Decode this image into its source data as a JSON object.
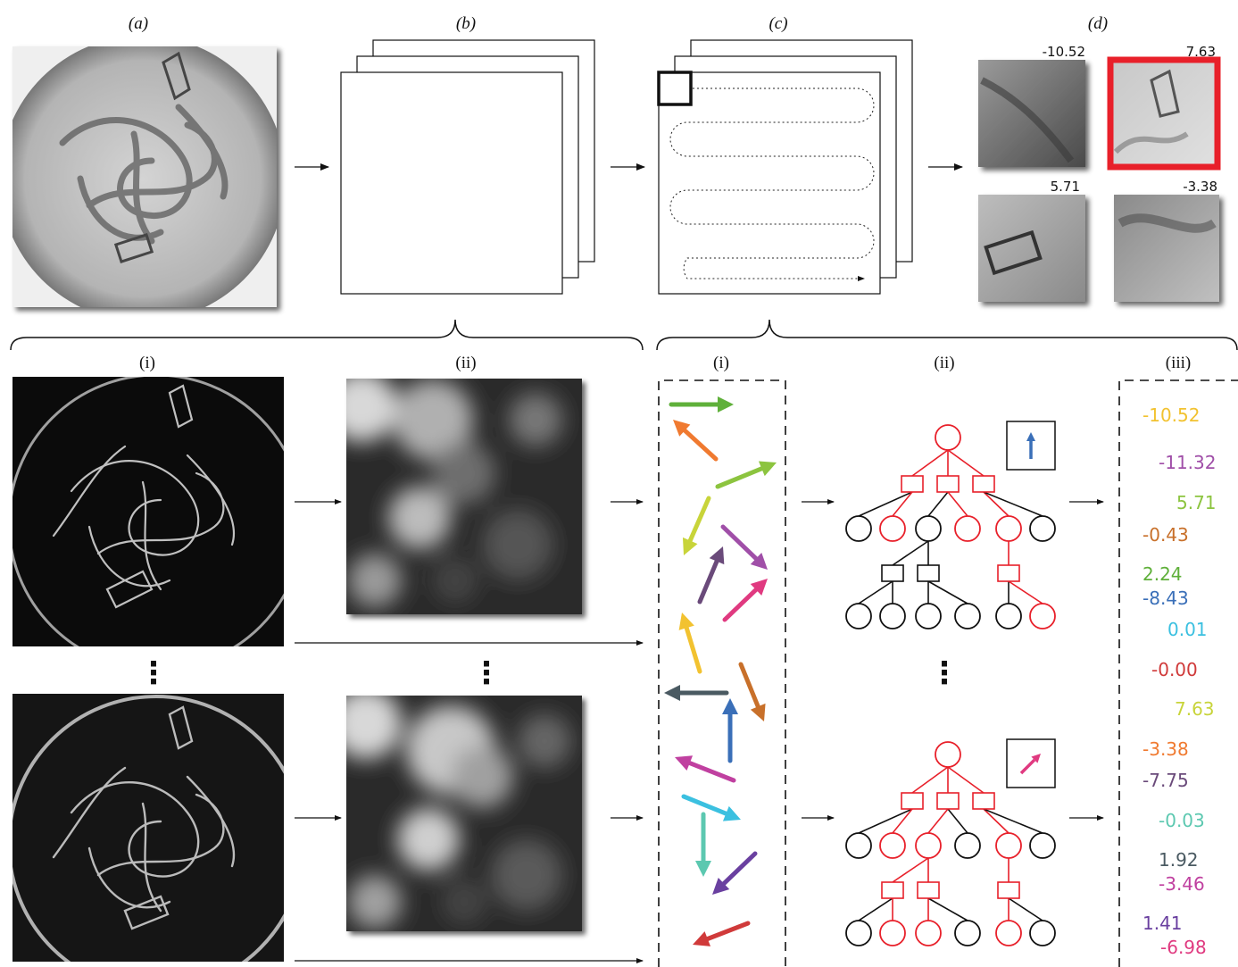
{
  "top_labels": [
    "(a)",
    "(b)",
    "(c)",
    "(d)"
  ],
  "bottom_left_labels": [
    "(i)",
    "(ii)"
  ],
  "bottom_right_labels": [
    "(i)",
    "(ii)",
    "(iii)"
  ],
  "tile_scores": [
    {
      "text": "-10.52",
      "color": "#111111",
      "highlighted": false
    },
    {
      "text": "7.63",
      "color": "#e8202a",
      "highlighted": true
    },
    {
      "text": "5.71",
      "color": "#111111",
      "highlighted": false
    },
    {
      "text": "-3.38",
      "color": "#111111",
      "highlighted": false
    }
  ],
  "highlight_color": "#e8202a",
  "ellipsis": "⋮",
  "tree_color": "#e8202a",
  "output_values": [
    {
      "text": "-10.52",
      "color": "#f2c230"
    },
    {
      "text": "-11.32",
      "color": "#a04fa8"
    },
    {
      "text": "5.71",
      "color": "#8cc43f"
    },
    {
      "text": "-0.43",
      "color": "#c8702a"
    },
    {
      "text": "2.24",
      "color": "#5fb03a"
    },
    {
      "text": "-8.43",
      "color": "#3a6fb8"
    },
    {
      "text": "0.01",
      "color": "#3bc0e0"
    },
    {
      "text": "-0.00",
      "color": "#d03a3a"
    },
    {
      "text": "7.63",
      "color": "#c8d43a"
    },
    {
      "text": "-3.38",
      "color": "#f07a30"
    },
    {
      "text": "-7.75",
      "color": "#6a4a7a"
    },
    {
      "text": "-0.03",
      "color": "#5cc8b0"
    },
    {
      "text": "1.92",
      "color": "#4a5a62"
    },
    {
      "text": "-3.46",
      "color": "#c040a0"
    },
    {
      "text": "1.41",
      "color": "#6a40a0"
    },
    {
      "text": "-6.98",
      "color": "#e03a80"
    }
  ],
  "feature_arrows": [
    {
      "color": "#5fb03a"
    },
    {
      "color": "#f07a30"
    },
    {
      "color": "#8cc43f"
    },
    {
      "color": "#c8d43a"
    },
    {
      "color": "#a04fa8"
    },
    {
      "color": "#6a4a7a"
    },
    {
      "color": "#e03a80"
    },
    {
      "color": "#f2c230"
    },
    {
      "color": "#c8702a"
    },
    {
      "color": "#4a5a62"
    },
    {
      "color": "#3a6fb8"
    },
    {
      "color": "#c040a0"
    },
    {
      "color": "#3bc0e0"
    },
    {
      "color": "#5cc8b0"
    },
    {
      "color": "#6a40a0"
    },
    {
      "color": "#d03a3a"
    }
  ],
  "tree_arrows": [
    {
      "color": "#3a6fb8"
    },
    {
      "color": "#e03a80"
    }
  ]
}
